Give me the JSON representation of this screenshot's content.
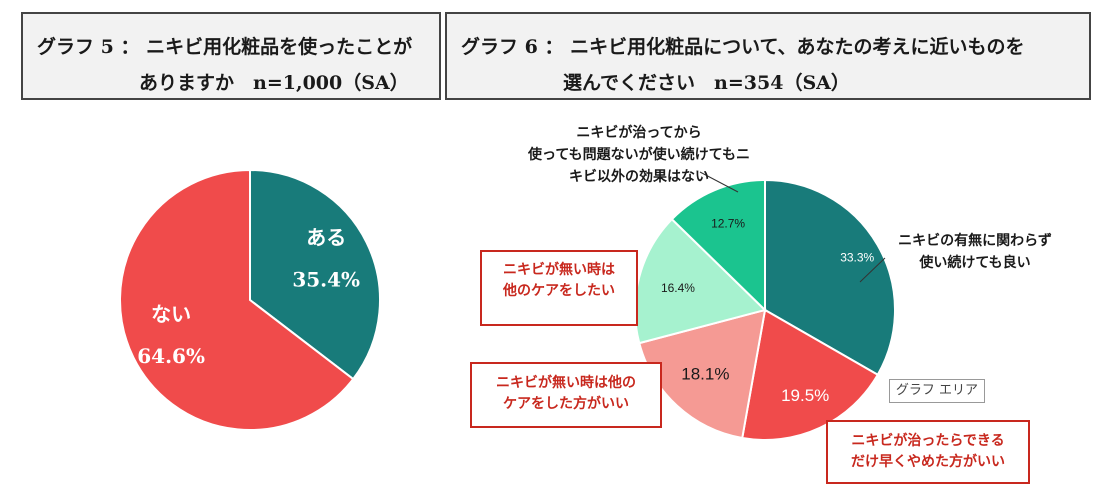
{
  "graph5": {
    "title_line1": "グラフ 5 ： ニキビ用化粧品を使ったことが",
    "title_line2": "ありますか　n=1,000（SA）"
  },
  "graph6": {
    "title_line1": "グラフ 6 ： ニキビ用化粧品について、あなたの考えに近いものを",
    "title_line2": "選んでください　n=354（SA）",
    "area_tag": "グラフ エリア"
  },
  "colors": {
    "teal": "#187b7a",
    "red": "#f04b4b",
    "salmon": "#f59a94",
    "mint": "#a6f2cf",
    "green": "#1bc48f",
    "label_red": "#c8281e"
  },
  "chart_data": [
    {
      "type": "pie",
      "title": "グラフ 5 ： ニキビ用化粧品を使ったことがありますか　n=1,000（SA）",
      "slices": [
        {
          "label": "ある",
          "value": 35.4,
          "value_label": "35.4%",
          "color": "#187b7a"
        },
        {
          "label": "ない",
          "value": 64.6,
          "value_label": "64.6%",
          "color": "#f04b4b"
        }
      ]
    },
    {
      "type": "pie",
      "title": "グラフ 6 ： ニキビ用化粧品について、あなたの考えに近いものを選んでください　n=354（SA）",
      "slices": [
        {
          "label": "ニキビの有無に関わらず 使い続けても良い",
          "value": 33.3,
          "value_label": "33.3%",
          "color": "#187b7a"
        },
        {
          "label": "ニキビが治ったらできる だけ早くやめた方がいい",
          "value": 19.5,
          "value_label": "19.5%",
          "color": "#f04b4b"
        },
        {
          "label": "ニキビが無い時は他の ケアをした方がいい",
          "value": 18.1,
          "value_label": "18.1%",
          "color": "#f59a94"
        },
        {
          "label": "ニキビが無い時は 他のケアをしたい",
          "value": 16.4,
          "value_label": "16.4%",
          "color": "#a6f2cf"
        },
        {
          "label": "ニキビが治ってから 使っても問題ないが使い続けてもニ キビ以外の効果はない",
          "value": 12.7,
          "value_label": "12.7%",
          "color": "#1bc48f"
        }
      ]
    }
  ],
  "slice_labels": {
    "keep_using": [
      "ニキビの有無に関わらず",
      "使い続けても良い"
    ],
    "stop_asap": [
      "ニキビが治ったらできる",
      "だけ早くやめた方がいい"
    ],
    "no_care_other": [
      "ニキビが無い時は他の",
      "ケアをした方がいい"
    ],
    "no_care": [
      "ニキビが無い時は",
      "他のケアをしたい"
    ],
    "no_other_effect": [
      "ニキビが治ってから",
      "使っても問題ないが使い続けてもニ",
      "キビ以外の効果はない"
    ]
  }
}
